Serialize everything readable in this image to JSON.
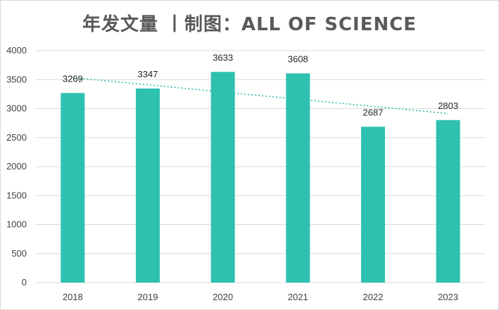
{
  "chart_data": {
    "type": "bar",
    "title": "年发文量 丨制图：ALL OF SCIENCE",
    "categories": [
      "2018",
      "2019",
      "2020",
      "2021",
      "2022",
      "2023"
    ],
    "series": [
      {
        "values": [
          3269,
          3347,
          3633,
          3608,
          2687,
          2803
        ]
      }
    ],
    "trendline": {
      "type": "linear",
      "style": "dotted"
    },
    "ylim": [
      0,
      4000
    ],
    "yticks": [
      0,
      500,
      1000,
      1500,
      2000,
      2500,
      3000,
      3500,
      4000
    ],
    "grid": true,
    "xlabel": "",
    "ylabel": "",
    "colors": {
      "bar": "#2ec1b0",
      "trendline": "#2ec1b0",
      "grid": "#d9d9d9",
      "title": "#595959"
    }
  }
}
